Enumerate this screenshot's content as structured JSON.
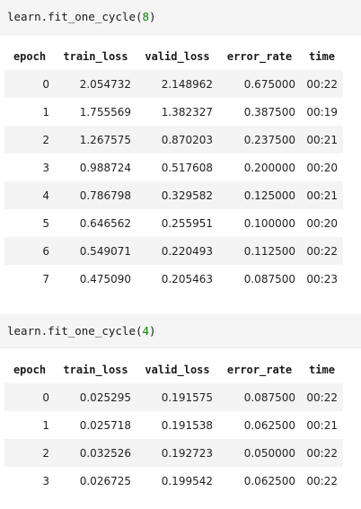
{
  "cells": [
    {
      "code": {
        "prefix": "learn.fit_one_cycle(",
        "arg": "8",
        "suffix": ")"
      },
      "table": {
        "headers": [
          "epoch",
          "train_loss",
          "valid_loss",
          "error_rate",
          "time"
        ],
        "rows": [
          [
            "0",
            "2.054732",
            "2.148962",
            "0.675000",
            "00:22"
          ],
          [
            "1",
            "1.755569",
            "1.382327",
            "0.387500",
            "00:19"
          ],
          [
            "2",
            "1.267575",
            "0.870203",
            "0.237500",
            "00:21"
          ],
          [
            "3",
            "0.988724",
            "0.517608",
            "0.200000",
            "00:20"
          ],
          [
            "4",
            "0.786798",
            "0.329582",
            "0.125000",
            "00:21"
          ],
          [
            "5",
            "0.646562",
            "0.255951",
            "0.100000",
            "00:20"
          ],
          [
            "6",
            "0.549071",
            "0.220493",
            "0.112500",
            "00:22"
          ],
          [
            "7",
            "0.475090",
            "0.205463",
            "0.087500",
            "00:23"
          ]
        ]
      }
    },
    {
      "code": {
        "prefix": "learn.fit_one_cycle(",
        "arg": "4",
        "suffix": ")"
      },
      "table": {
        "headers": [
          "epoch",
          "train_loss",
          "valid_loss",
          "error_rate",
          "time"
        ],
        "rows": [
          [
            "0",
            "0.025295",
            "0.191575",
            "0.087500",
            "00:22"
          ],
          [
            "1",
            "0.025718",
            "0.191538",
            "0.062500",
            "00:21"
          ],
          [
            "2",
            "0.032526",
            "0.192723",
            "0.050000",
            "00:22"
          ],
          [
            "3",
            "0.026725",
            "0.199542",
            "0.062500",
            "00:22"
          ]
        ]
      }
    }
  ],
  "colors": {
    "code_cell_background": "#f5f5f5",
    "number_literal": "#008800",
    "striped_row": "#f4f4f4"
  }
}
